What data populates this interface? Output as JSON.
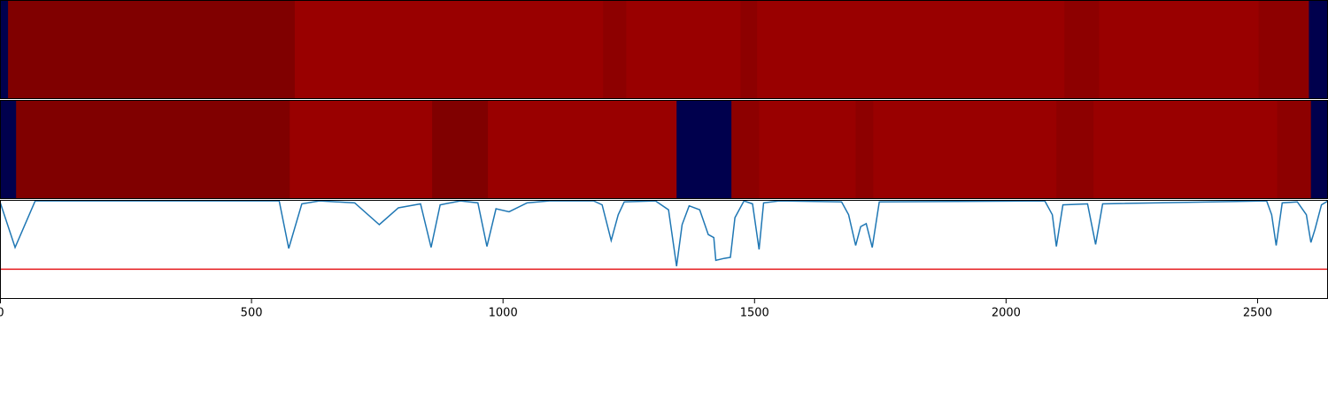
{
  "chart_data": [
    {
      "type": "heatmap",
      "colormap": "seismic",
      "vlim": [
        -1,
        1
      ],
      "xlim": [
        0,
        2640
      ],
      "edges": [
        0,
        16,
        586,
        1199,
        1245,
        1472,
        1505,
        2116,
        2185,
        2502,
        2602,
        2640
      ],
      "values": [
        -1,
        1,
        0.9,
        0.95,
        0.9,
        0.95,
        0.9,
        0.95,
        0.9,
        0.95,
        -1
      ]
    },
    {
      "type": "heatmap",
      "colormap": "seismic",
      "vlim": [
        -1,
        1
      ],
      "xlim": [
        0,
        2640
      ],
      "edges": [
        0,
        32,
        576,
        859,
        970,
        1345,
        1454,
        1509,
        1701,
        1736,
        2100,
        2174,
        2539,
        2606,
        2640
      ],
      "values": [
        -1,
        1,
        0.9,
        1,
        0.9,
        -1,
        0.95,
        0.9,
        0.95,
        0.9,
        0.95,
        0.9,
        0.95,
        -1
      ]
    },
    {
      "type": "line",
      "xlim": [
        0,
        2640
      ],
      "ylim": [
        0,
        1
      ],
      "xticks": [
        0,
        500,
        1000,
        1500,
        2000,
        2500
      ],
      "color": "#1f77b4",
      "threshold": 0.3,
      "threshold_color": "#e41a1c",
      "x": [
        0,
        30,
        70,
        555,
        574,
        600,
        635,
        705,
        754,
        792,
        836,
        857,
        875,
        915,
        950,
        968,
        986,
        1012,
        1048,
        1092,
        1180,
        1197,
        1215,
        1229,
        1241,
        1303,
        1329,
        1345,
        1356,
        1370,
        1391,
        1408,
        1419,
        1423,
        1440,
        1452,
        1461,
        1479,
        1496,
        1509,
        1518,
        1549,
        1673,
        1687,
        1701,
        1711,
        1722,
        1734,
        1748,
        2077,
        2092,
        2100,
        2113,
        2162,
        2178,
        2192,
        2518,
        2528,
        2537,
        2549,
        2579,
        2597,
        2606,
        2614,
        2627,
        2640
      ],
      "values": [
        0.98,
        0.52,
        0.99,
        0.99,
        0.51,
        0.96,
        0.99,
        0.97,
        0.75,
        0.92,
        0.96,
        0.52,
        0.95,
        0.99,
        0.97,
        0.53,
        0.91,
        0.88,
        0.97,
        0.99,
        0.99,
        0.95,
        0.59,
        0.85,
        0.98,
        0.99,
        0.9,
        0.33,
        0.75,
        0.94,
        0.9,
        0.65,
        0.62,
        0.39,
        0.41,
        0.42,
        0.82,
        0.99,
        0.96,
        0.5,
        0.97,
        0.99,
        0.98,
        0.85,
        0.54,
        0.73,
        0.76,
        0.52,
        0.98,
        0.99,
        0.85,
        0.53,
        0.95,
        0.96,
        0.55,
        0.96,
        0.99,
        0.85,
        0.54,
        0.97,
        0.98,
        0.85,
        0.57,
        0.7,
        0.95,
        0.99
      ]
    }
  ]
}
